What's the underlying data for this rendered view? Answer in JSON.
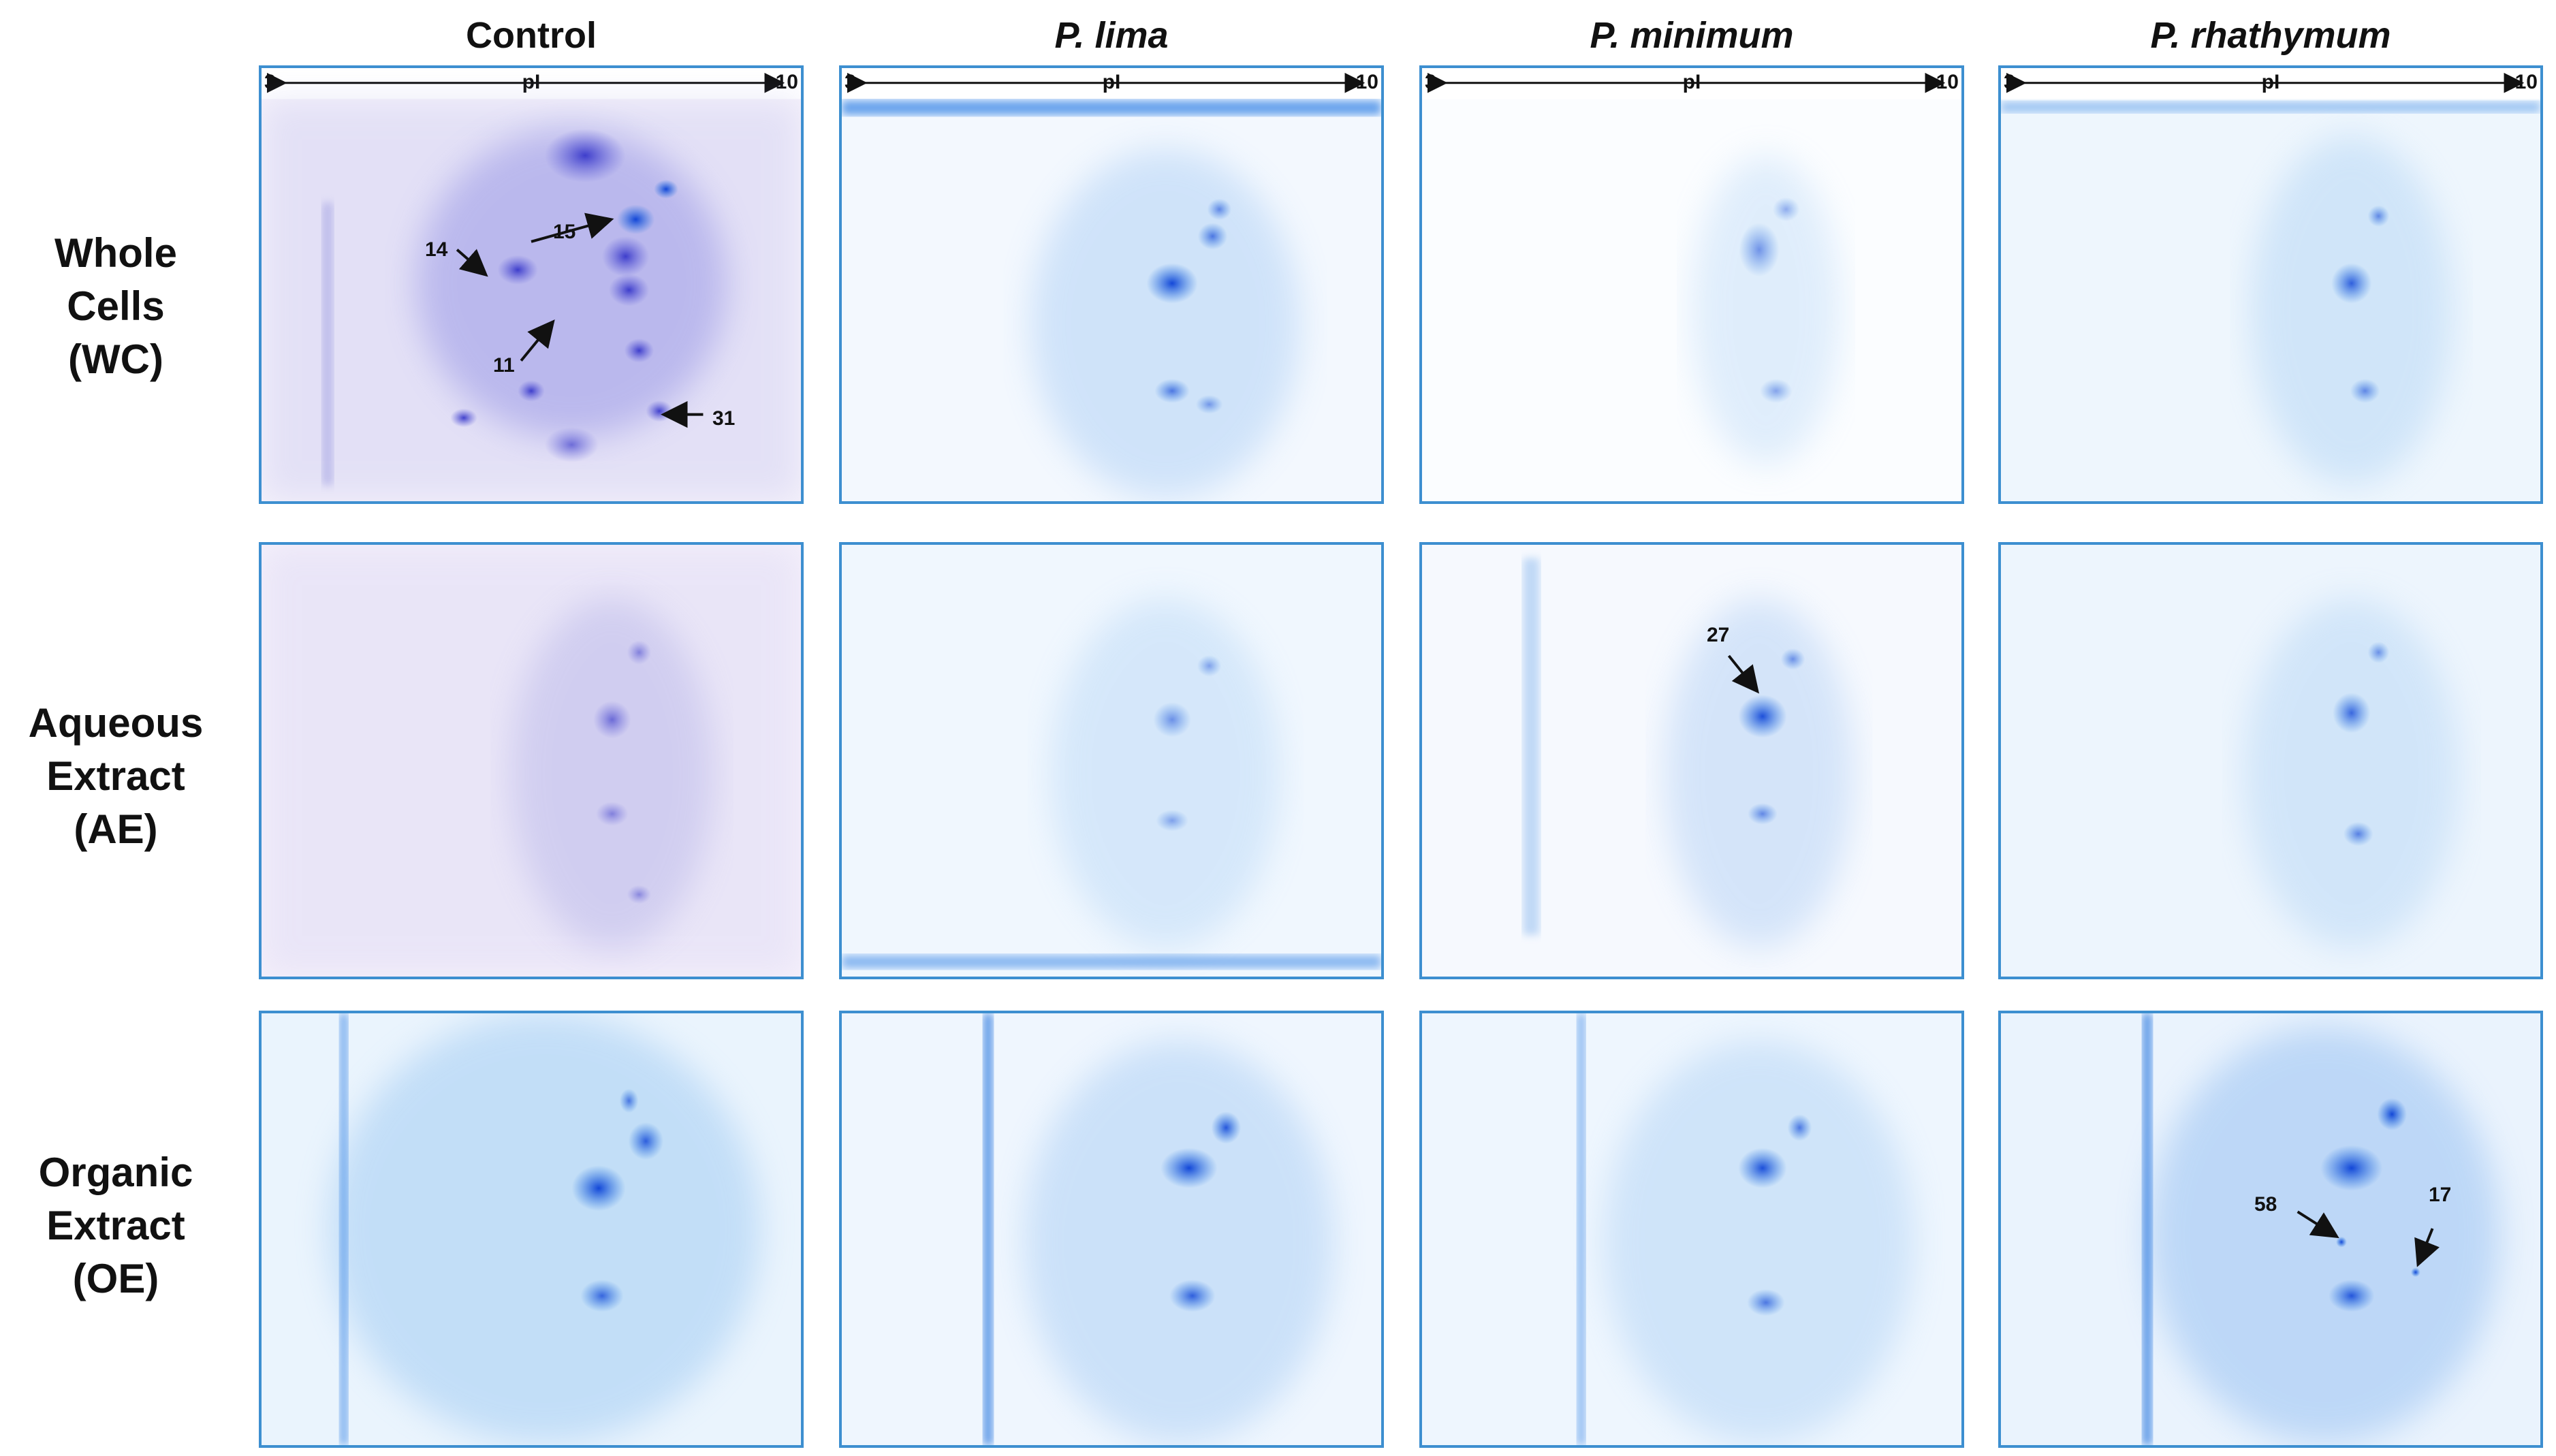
{
  "columns": [
    {
      "label": "Control",
      "italic": false
    },
    {
      "label": "P. lima",
      "italic": true
    },
    {
      "label": "P. minimum",
      "italic": true
    },
    {
      "label": "P. rhathymum",
      "italic": true
    }
  ],
  "rows": [
    {
      "line1": "Whole",
      "line2": "Cells",
      "line3": "(WC)"
    },
    {
      "line1": "Aqueous",
      "line2": "Extract",
      "line3": "(AE)"
    },
    {
      "line1": "Organic",
      "line2": "Extract",
      "line3": "(OE)"
    }
  ],
  "axis": {
    "low": "3",
    "label": "pI",
    "high": "10"
  },
  "annotations": {
    "spot_14": "14",
    "spot_15": "15",
    "spot_11": "11",
    "spot_31": "31",
    "spot_27": "27",
    "spot_58": "58",
    "spot_17": "17"
  },
  "colors": {
    "frame": "#3d8fd0",
    "stain_blue": "#1a6fe0",
    "stain_violet": "#5a5ad8"
  }
}
